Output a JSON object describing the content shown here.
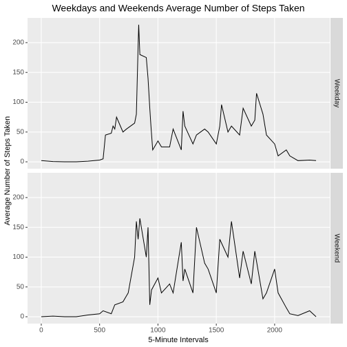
{
  "chart_data": {
    "type": "line",
    "title": "Weekdays and Weekends Average Number of Steps Taken",
    "x_label": "5-Minute Intervals",
    "y_label": "Average Number of Steps Taken",
    "xlim": [
      -117.75,
      2472.75
    ],
    "xticks": [
      0,
      500,
      1000,
      1500,
      2000
    ],
    "ylim": [
      -11.5,
      241.5
    ],
    "yticks": [
      0,
      50,
      100,
      150,
      200
    ],
    "grid": true,
    "panels": [
      {
        "name": "Weekday",
        "color": "#000000",
        "x": [
          0,
          100,
          200,
          300,
          400,
          500,
          530,
          550,
          600,
          615,
          630,
          645,
          700,
          730,
          800,
          815,
          830,
          835,
          845,
          900,
          915,
          930,
          940,
          955,
          1000,
          1030,
          1100,
          1130,
          1200,
          1215,
          1230,
          1300,
          1330,
          1400,
          1430,
          1500,
          1530,
          1545,
          1600,
          1630,
          1700,
          1730,
          1800,
          1830,
          1845,
          1900,
          1930,
          2000,
          2030,
          2100,
          2130,
          2200,
          2300,
          2355
        ],
        "values": [
          2,
          0.5,
          0,
          0,
          1,
          3,
          5,
          45,
          48,
          60,
          55,
          75,
          50,
          55,
          65,
          80,
          195,
          230,
          180,
          175,
          140,
          90,
          60,
          20,
          35,
          25,
          25,
          55,
          20,
          85,
          60,
          30,
          45,
          55,
          50,
          30,
          60,
          96,
          50,
          60,
          45,
          90,
          60,
          70,
          115,
          80,
          45,
          30,
          10,
          20,
          10,
          2,
          3,
          2
        ]
      },
      {
        "name": "Weekend",
        "color": "#000000",
        "x": [
          0,
          100,
          200,
          300,
          400,
          500,
          530,
          600,
          630,
          700,
          730,
          745,
          800,
          815,
          830,
          845,
          900,
          915,
          930,
          945,
          1000,
          1030,
          1100,
          1130,
          1200,
          1215,
          1230,
          1300,
          1330,
          1400,
          1430,
          1500,
          1530,
          1600,
          1630,
          1700,
          1730,
          1800,
          1830,
          1900,
          1930,
          2000,
          2030,
          2100,
          2130,
          2200,
          2300,
          2355
        ],
        "values": [
          0,
          1,
          0,
          0,
          3,
          5,
          10,
          5,
          20,
          25,
          35,
          40,
          100,
          160,
          130,
          165,
          100,
          150,
          20,
          45,
          65,
          40,
          55,
          40,
          125,
          60,
          80,
          40,
          150,
          90,
          80,
          40,
          130,
          100,
          160,
          65,
          110,
          55,
          110,
          30,
          40,
          80,
          40,
          15,
          5,
          2,
          10,
          0
        ]
      }
    ]
  }
}
